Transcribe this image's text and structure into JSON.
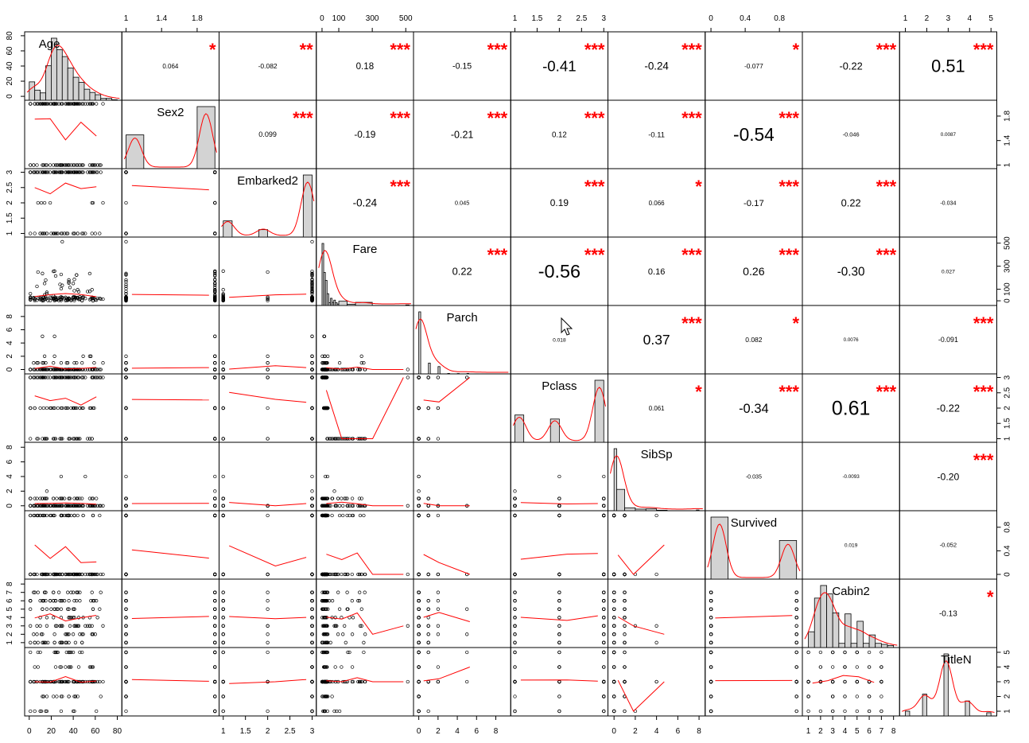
{
  "chart_data": {
    "type": "scatter-matrix",
    "variables": [
      "Age",
      "Sex2",
      "Embarked2",
      "Fare",
      "Parch",
      "Pclass",
      "SibSp",
      "Survived",
      "Cabin2",
      "TitleN"
    ],
    "axis_ticks": {
      "Age": [
        0,
        20,
        40,
        60,
        80
      ],
      "Sex2": [
        1.0,
        1.4,
        1.8
      ],
      "Embarked2": [
        1.0,
        1.5,
        2.0,
        2.5,
        3.0
      ],
      "Fare": [
        0,
        100,
        300,
        500
      ],
      "Parch": [
        0,
        2,
        4,
        6,
        8
      ],
      "Pclass": [
        1.0,
        1.5,
        2.0,
        2.5,
        3.0
      ],
      "SibSp": [
        0,
        2,
        4,
        6,
        8
      ],
      "Survived": [
        0.0,
        0.4,
        0.8
      ],
      "Cabin2": [
        1,
        2,
        3,
        4,
        5,
        6,
        7,
        8
      ],
      "TitleN": [
        1,
        2,
        3,
        4,
        5
      ]
    },
    "axis_ranges": {
      "Age": [
        -2,
        82
      ],
      "Sex2": [
        0.98,
        2.02
      ],
      "Embarked2": [
        0.96,
        3.04
      ],
      "Fare": [
        -20,
        532
      ],
      "Parch": [
        -0.3,
        9.3
      ],
      "Pclass": [
        0.96,
        3.04
      ],
      "SibSp": [
        -0.35,
        8.35
      ],
      "Survived": [
        -0.04,
        1.04
      ],
      "Cabin2": [
        0.7,
        8.3
      ],
      "TitleN": [
        0.84,
        5.16
      ]
    },
    "correlations": [
      {
        "row": "Age",
        "col": "Sex2",
        "r": "0.064",
        "stars": "*"
      },
      {
        "row": "Age",
        "col": "Embarked2",
        "r": "-0.082",
        "stars": "**"
      },
      {
        "row": "Age",
        "col": "Fare",
        "r": "0.18",
        "stars": "***"
      },
      {
        "row": "Age",
        "col": "Parch",
        "r": "-0.15",
        "stars": "***"
      },
      {
        "row": "Age",
        "col": "Pclass",
        "r": "-0.41",
        "stars": "***"
      },
      {
        "row": "Age",
        "col": "SibSp",
        "r": "-0.24",
        "stars": "***"
      },
      {
        "row": "Age",
        "col": "Survived",
        "r": "-0.077",
        "stars": "*"
      },
      {
        "row": "Age",
        "col": "Cabin2",
        "r": "-0.22",
        "stars": "***"
      },
      {
        "row": "Age",
        "col": "TitleN",
        "r": "0.51",
        "stars": "***"
      },
      {
        "row": "Sex2",
        "col": "Embarked2",
        "r": "0.099",
        "stars": "***"
      },
      {
        "row": "Sex2",
        "col": "Fare",
        "r": "-0.19",
        "stars": "***"
      },
      {
        "row": "Sex2",
        "col": "Parch",
        "r": "-0.21",
        "stars": "***"
      },
      {
        "row": "Sex2",
        "col": "Pclass",
        "r": "0.12",
        "stars": "***"
      },
      {
        "row": "Sex2",
        "col": "SibSp",
        "r": "-0.11",
        "stars": "***"
      },
      {
        "row": "Sex2",
        "col": "Survived",
        "r": "-0.54",
        "stars": "***"
      },
      {
        "row": "Sex2",
        "col": "Cabin2",
        "r": "-0.046",
        "stars": ""
      },
      {
        "row": "Sex2",
        "col": "TitleN",
        "r": "0.0087",
        "stars": ""
      },
      {
        "row": "Embarked2",
        "col": "Fare",
        "r": "-0.24",
        "stars": "***"
      },
      {
        "row": "Embarked2",
        "col": "Parch",
        "r": "0.045",
        "stars": ""
      },
      {
        "row": "Embarked2",
        "col": "Pclass",
        "r": "0.19",
        "stars": "***"
      },
      {
        "row": "Embarked2",
        "col": "SibSp",
        "r": "0.066",
        "stars": "*"
      },
      {
        "row": "Embarked2",
        "col": "Survived",
        "r": "-0.17",
        "stars": "***"
      },
      {
        "row": "Embarked2",
        "col": "Cabin2",
        "r": "0.22",
        "stars": "***"
      },
      {
        "row": "Embarked2",
        "col": "TitleN",
        "r": "-0.034",
        "stars": ""
      },
      {
        "row": "Fare",
        "col": "Parch",
        "r": "0.22",
        "stars": "***"
      },
      {
        "row": "Fare",
        "col": "Pclass",
        "r": "-0.56",
        "stars": "***"
      },
      {
        "row": "Fare",
        "col": "SibSp",
        "r": "0.16",
        "stars": "***"
      },
      {
        "row": "Fare",
        "col": "Survived",
        "r": "0.26",
        "stars": "***"
      },
      {
        "row": "Fare",
        "col": "Cabin2",
        "r": "-0.30",
        "stars": "***"
      },
      {
        "row": "Fare",
        "col": "TitleN",
        "r": "0.027",
        "stars": ""
      },
      {
        "row": "Parch",
        "col": "Pclass",
        "r": "0.018",
        "stars": ""
      },
      {
        "row": "Parch",
        "col": "SibSp",
        "r": "0.37",
        "stars": "***"
      },
      {
        "row": "Parch",
        "col": "Survived",
        "r": "0.082",
        "stars": "*"
      },
      {
        "row": "Parch",
        "col": "Cabin2",
        "r": "0.0076",
        "stars": ""
      },
      {
        "row": "Parch",
        "col": "TitleN",
        "r": "-0.091",
        "stars": "***"
      },
      {
        "row": "Pclass",
        "col": "SibSp",
        "r": "0.061",
        "stars": "*"
      },
      {
        "row": "Pclass",
        "col": "Survived",
        "r": "-0.34",
        "stars": "***"
      },
      {
        "row": "Pclass",
        "col": "Cabin2",
        "r": "0.61",
        "stars": "***"
      },
      {
        "row": "Pclass",
        "col": "TitleN",
        "r": "-0.22",
        "stars": "***"
      },
      {
        "row": "SibSp",
        "col": "Survived",
        "r": "-0.035",
        "stars": ""
      },
      {
        "row": "SibSp",
        "col": "Cabin2",
        "r": "-0.0093",
        "stars": ""
      },
      {
        "row": "SibSp",
        "col": "TitleN",
        "r": "-0.20",
        "stars": "***"
      },
      {
        "row": "Survived",
        "col": "Cabin2",
        "r": "0.019",
        "stars": ""
      },
      {
        "row": "Survived",
        "col": "TitleN",
        "r": "-0.052",
        "stars": ""
      },
      {
        "row": "Cabin2",
        "col": "TitleN",
        "r": "-0.13",
        "stars": "*"
      }
    ],
    "histograms": {
      "Age": [
        {
          "from": 0,
          "to": 5,
          "n": 40
        },
        {
          "from": 5,
          "to": 10,
          "n": 22
        },
        {
          "from": 10,
          "to": 15,
          "n": 16
        },
        {
          "from": 15,
          "to": 20,
          "n": 75
        },
        {
          "from": 20,
          "to": 25,
          "n": 135
        },
        {
          "from": 25,
          "to": 30,
          "n": 110
        },
        {
          "from": 30,
          "to": 35,
          "n": 95
        },
        {
          "from": 35,
          "to": 40,
          "n": 70
        },
        {
          "from": 40,
          "to": 45,
          "n": 50
        },
        {
          "from": 45,
          "to": 50,
          "n": 39
        },
        {
          "from": 50,
          "to": 55,
          "n": 24
        },
        {
          "from": 55,
          "to": 60,
          "n": 17
        },
        {
          "from": 60,
          "to": 65,
          "n": 12
        },
        {
          "from": 65,
          "to": 70,
          "n": 4
        },
        {
          "from": 70,
          "to": 75,
          "n": 4
        },
        {
          "from": 75,
          "to": 80,
          "n": 1
        }
      ],
      "Sex2": [
        {
          "from": 1.0,
          "to": 1.2,
          "n": 314
        },
        {
          "from": 1.8,
          "to": 2.0,
          "n": 577
        }
      ],
      "Embarked2": [
        {
          "from": 1.0,
          "to": 1.2,
          "n": 168
        },
        {
          "from": 1.8,
          "to": 2.0,
          "n": 77
        },
        {
          "from": 2.8,
          "to": 3.0,
          "n": 644
        }
      ],
      "Fare": [
        {
          "from": 0,
          "to": 10,
          "n": 336
        },
        {
          "from": 10,
          "to": 20,
          "n": 179
        },
        {
          "from": 20,
          "to": 30,
          "n": 136
        },
        {
          "from": 30,
          "to": 40,
          "n": 64
        },
        {
          "from": 40,
          "to": 50,
          "n": 15
        },
        {
          "from": 50,
          "to": 60,
          "n": 39
        },
        {
          "from": 60,
          "to": 70,
          "n": 17
        },
        {
          "from": 70,
          "to": 80,
          "n": 29
        },
        {
          "from": 80,
          "to": 90,
          "n": 15
        },
        {
          "from": 90,
          "to": 100,
          "n": 8
        },
        {
          "from": 100,
          "to": 150,
          "n": 23
        },
        {
          "from": 150,
          "to": 200,
          "n": 7
        },
        {
          "from": 200,
          "to": 300,
          "n": 17
        },
        {
          "from": 500,
          "to": 520,
          "n": 3
        }
      ],
      "Parch": [
        {
          "from": 0,
          "to": 0.2,
          "n": 678
        },
        {
          "from": 1,
          "to": 1.2,
          "n": 118
        },
        {
          "from": 2,
          "to": 2.2,
          "n": 80
        },
        {
          "from": 3,
          "to": 3.2,
          "n": 5
        },
        {
          "from": 4,
          "to": 4.2,
          "n": 4
        },
        {
          "from": 5,
          "to": 5.2,
          "n": 5
        },
        {
          "from": 6,
          "to": 6.2,
          "n": 1
        }
      ],
      "Pclass": [
        {
          "from": 1.0,
          "to": 1.2,
          "n": 216
        },
        {
          "from": 1.8,
          "to": 2.0,
          "n": 184
        },
        {
          "from": 2.8,
          "to": 3.0,
          "n": 491
        }
      ],
      "SibSp": [
        {
          "from": 0,
          "to": 0.25,
          "n": 608
        },
        {
          "from": 0.25,
          "to": 1,
          "n": 209
        },
        {
          "from": 1,
          "to": 2,
          "n": 28
        },
        {
          "from": 2,
          "to": 3,
          "n": 16
        },
        {
          "from": 3,
          "to": 4,
          "n": 18
        },
        {
          "from": 4,
          "to": 5,
          "n": 5
        },
        {
          "from": 7.75,
          "to": 8,
          "n": 7
        }
      ],
      "Survived": [
        {
          "from": 0.0,
          "to": 0.2,
          "n": 549
        },
        {
          "from": 0.8,
          "to": 1.0,
          "n": 342
        }
      ],
      "Cabin2": [
        {
          "from": 1,
          "to": 1.5,
          "n": 15
        },
        {
          "from": 1.5,
          "to": 2,
          "n": 47
        },
        {
          "from": 2,
          "to": 2.5,
          "n": 59
        },
        {
          "from": 2.5,
          "to": 3,
          "n": 51
        },
        {
          "from": 3,
          "to": 3.5,
          "n": 33
        },
        {
          "from": 3.5,
          "to": 4,
          "n": 4
        },
        {
          "from": 4,
          "to": 4.5,
          "n": 32
        },
        {
          "from": 4.5,
          "to": 5,
          "n": 4
        },
        {
          "from": 5,
          "to": 5.5,
          "n": 25
        },
        {
          "from": 5.5,
          "to": 6,
          "n": 4
        },
        {
          "from": 6,
          "to": 6.5,
          "n": 12
        },
        {
          "from": 6.5,
          "to": 7,
          "n": 4
        },
        {
          "from": 7,
          "to": 7.5,
          "n": 3
        },
        {
          "from": 7.5,
          "to": 8,
          "n": 2
        }
      ],
      "TitleN": [
        {
          "from": 1.0,
          "to": 1.2,
          "n": 40
        },
        {
          "from": 1.8,
          "to": 2.0,
          "n": 182
        },
        {
          "from": 2.8,
          "to": 3.0,
          "n": 517
        },
        {
          "from": 3.8,
          "to": 4.0,
          "n": 125
        },
        {
          "from": 4.8,
          "to": 5.0,
          "n": 27
        }
      ]
    },
    "density_peaks": {
      "Age": [
        [
          -2,
          0.05
        ],
        [
          2,
          0.2
        ],
        [
          8,
          0.3
        ],
        [
          14,
          0.45
        ],
        [
          20,
          0.9
        ],
        [
          24,
          1.0
        ],
        [
          28,
          0.92
        ],
        [
          34,
          0.75
        ],
        [
          40,
          0.55
        ],
        [
          46,
          0.45
        ],
        [
          52,
          0.3
        ],
        [
          58,
          0.2
        ],
        [
          64,
          0.12
        ],
        [
          70,
          0.06
        ],
        [
          76,
          0.03
        ],
        [
          82,
          0.01
        ]
      ]
    },
    "smoothers_note": "",
    "legend": "none",
    "grid": "off"
  }
}
